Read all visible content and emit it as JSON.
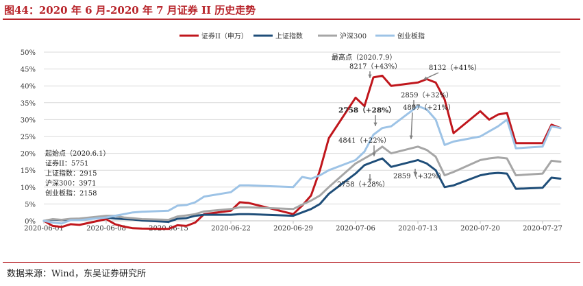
{
  "header": {
    "title": "图44：2020 年 6 月-2020 年 7 月证券 II 历史走势"
  },
  "footer": {
    "source": "数据来源：Wind，东吴证券研究所"
  },
  "chart_data": {
    "type": "line",
    "ylim": [
      0,
      50
    ],
    "yticks": [
      "0%",
      "5%",
      "10%",
      "15%",
      "20%",
      "25%",
      "30%",
      "35%",
      "40%",
      "45%",
      "50%"
    ],
    "xticks": [
      "2020-06-01",
      "2020-06-08",
      "2020-06-15",
      "2020-06-22",
      "2020-06-29",
      "2020-07-06",
      "2020-07-13",
      "2020-07-20",
      "2020-07-27"
    ],
    "dates": [
      "2020-06-01",
      "2020-06-02",
      "2020-06-03",
      "2020-06-04",
      "2020-06-05",
      "2020-06-08",
      "2020-06-09",
      "2020-06-10",
      "2020-06-11",
      "2020-06-12",
      "2020-06-15",
      "2020-06-16",
      "2020-06-17",
      "2020-06-18",
      "2020-06-19",
      "2020-06-22",
      "2020-06-23",
      "2020-06-24",
      "2020-06-29",
      "2020-06-30",
      "2020-07-01",
      "2020-07-02",
      "2020-07-03",
      "2020-07-06",
      "2020-07-07",
      "2020-07-08",
      "2020-07-09",
      "2020-07-10",
      "2020-07-13",
      "2020-07-14",
      "2020-07-15",
      "2020-07-16",
      "2020-07-17",
      "2020-07-20",
      "2020-07-21",
      "2020-07-22",
      "2020-07-23",
      "2020-07-24",
      "2020-07-27",
      "2020-07-28",
      "2020-07-29"
    ],
    "legend_position": "top",
    "series": [
      {
        "name": "证券II（申万）",
        "color": "#c0161c",
        "values": [
          0,
          -1.5,
          -1.8,
          -1.0,
          -1.2,
          0.5,
          -1.0,
          -1.7,
          -2.2,
          -2.3,
          -2.4,
          -1.3,
          -1.5,
          -0.5,
          2.0,
          3.0,
          5.5,
          5.3,
          2.0,
          4.5,
          7.5,
          15.0,
          24.5,
          36.5,
          34.0,
          42.5,
          43.0,
          40.0,
          41.0,
          42.0,
          41.0,
          36.0,
          26.0,
          32.5,
          30.0,
          31.5,
          32.0,
          23.0,
          23.0,
          28.5,
          27.5
        ]
      },
      {
        "name": "上证指数",
        "color": "#1f4e79",
        "values": [
          0,
          0.4,
          0.2,
          0.5,
          0.5,
          1.0,
          0.7,
          0.5,
          0.4,
          0.1,
          -0.3,
          0.6,
          0.8,
          1.5,
          1.8,
          1.8,
          2.0,
          2.0,
          1.5,
          2.5,
          3.5,
          5.0,
          8.0,
          14.0,
          16.5,
          17.5,
          18.5,
          16.0,
          18.0,
          17.0,
          15.0,
          10.0,
          10.5,
          13.5,
          14.0,
          14.2,
          14.0,
          9.5,
          9.8,
          12.8,
          12.5
        ]
      },
      {
        "name": "沪深300",
        "color": "#a6a6a6",
        "values": [
          0,
          0.5,
          0.3,
          0.6,
          0.7,
          1.5,
          1.5,
          1.0,
          0.8,
          0.5,
          0.3,
          1.3,
          1.6,
          2.0,
          2.8,
          3.5,
          4.0,
          4.0,
          3.5,
          4.8,
          6.0,
          7.5,
          10.0,
          17.0,
          18.5,
          20.0,
          22.0,
          20.0,
          22.0,
          21.0,
          19.0,
          13.5,
          14.5,
          18.0,
          18.5,
          18.8,
          18.5,
          13.5,
          14.0,
          17.8,
          17.5
        ]
      },
      {
        "name": "创业板指",
        "color": "#9dc3e6",
        "values": [
          0,
          -0.5,
          -0.8,
          0.2,
          0.2,
          1.0,
          1.5,
          2.0,
          2.5,
          2.7,
          3.0,
          4.5,
          4.7,
          5.5,
          7.2,
          8.5,
          10.5,
          10.5,
          10.0,
          13.0,
          12.5,
          13.5,
          15.0,
          18.0,
          20.5,
          25.5,
          27.5,
          28.0,
          34.0,
          33.0,
          30.0,
          22.5,
          23.5,
          25.0,
          26.5,
          28.0,
          30.0,
          21.5,
          22.0,
          28.0,
          27.5
        ]
      }
    ],
    "annotations": {
      "start_box": {
        "lines": [
          "起始点（2020.6.1）",
          "证券II：5751",
          "上证指数：2915",
          "沪深300：3971",
          "创业板指：2158"
        ]
      },
      "peak": {
        "lines": [
          "最高点（2020.7.9）",
          "8217（+43%）"
        ]
      },
      "label_8132": "8132（+41%）",
      "label_2859_top": "2859（+32%）",
      "label_2758_bold": "2758（+28%）",
      "label_4807": "4807（+21%）",
      "label_4841": "4841（+22%）",
      "label_2859_bottom": "2859（+32%）",
      "label_2758_bottom": "2758（+28%）"
    }
  }
}
